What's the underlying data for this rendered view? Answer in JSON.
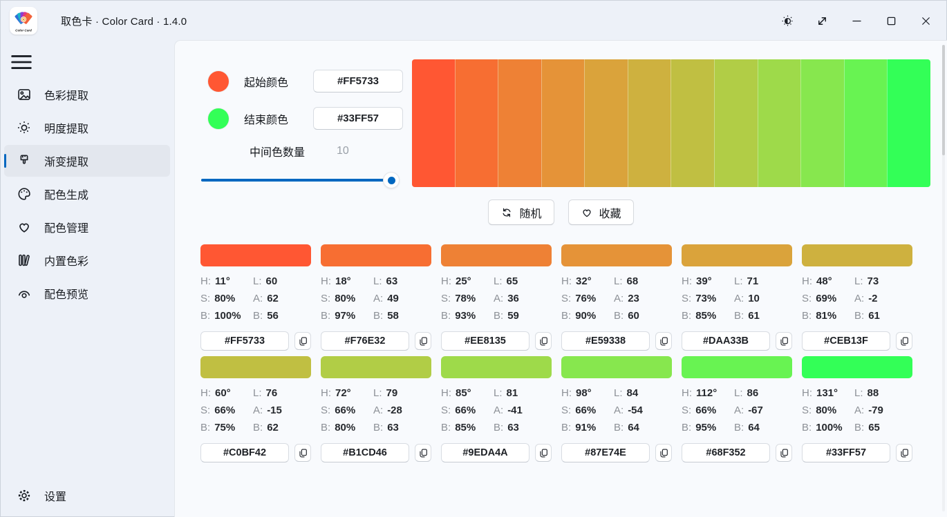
{
  "window": {
    "title": "取色卡 · Color Card · 1.4.0",
    "app_icon_label": "Color Card"
  },
  "sidebar": {
    "items": [
      {
        "name": "color-extract",
        "icon": "image-icon",
        "label": "色彩提取",
        "selected": false
      },
      {
        "name": "brightness-extract",
        "icon": "brightness-icon",
        "label": "明度提取",
        "selected": false
      },
      {
        "name": "gradient-extract",
        "icon": "brush-icon",
        "label": "渐变提取",
        "selected": true
      },
      {
        "name": "scheme-generate",
        "icon": "palette-icon",
        "label": "配色生成",
        "selected": false
      },
      {
        "name": "scheme-manage",
        "icon": "heart-icon",
        "label": "配色管理",
        "selected": false
      },
      {
        "name": "builtin-colors",
        "icon": "library-icon",
        "label": "内置色彩",
        "selected": false
      },
      {
        "name": "scheme-preview",
        "icon": "preview-icon",
        "label": "配色预览",
        "selected": false
      }
    ],
    "settings_label": "设置"
  },
  "panel": {
    "start_label": "起始颜色",
    "start_value": "#FF5733",
    "start_color": "#FF5733",
    "end_label": "结束颜色",
    "end_value": "#33FF57",
    "end_color": "#33FF57",
    "count_label": "中间色数量",
    "count_value": "10",
    "slider_percent": 100
  },
  "actions": {
    "random_label": "随机",
    "favorite_label": "收藏"
  },
  "gradient": {
    "colors": [
      "#FF5733",
      "#F76E32",
      "#EE8135",
      "#E59338",
      "#DAA33B",
      "#CEB13F",
      "#C0BF42",
      "#B1CD46",
      "#9EDA4A",
      "#87E74E",
      "#68F352",
      "#33FF57"
    ]
  },
  "value_labels": {
    "h": "H:",
    "s": "S:",
    "b": "B:",
    "l": "L:",
    "a": "A:",
    "b2": "B:"
  },
  "swatches": [
    {
      "hex": "#FF5733",
      "h": "11°",
      "s": "80%",
      "b": "100%",
      "l": "60",
      "a": "62",
      "b2": "56"
    },
    {
      "hex": "#F76E32",
      "h": "18°",
      "s": "80%",
      "b": "97%",
      "l": "63",
      "a": "49",
      "b2": "58"
    },
    {
      "hex": "#EE8135",
      "h": "25°",
      "s": "78%",
      "b": "93%",
      "l": "65",
      "a": "36",
      "b2": "59"
    },
    {
      "hex": "#E59338",
      "h": "32°",
      "s": "76%",
      "b": "90%",
      "l": "68",
      "a": "23",
      "b2": "60"
    },
    {
      "hex": "#DAA33B",
      "h": "39°",
      "s": "73%",
      "b": "85%",
      "l": "71",
      "a": "10",
      "b2": "61"
    },
    {
      "hex": "#CEB13F",
      "h": "48°",
      "s": "69%",
      "b": "81%",
      "l": "73",
      "a": "-2",
      "b2": "61"
    },
    {
      "hex": "#C0BF42",
      "h": "60°",
      "s": "66%",
      "b": "75%",
      "l": "76",
      "a": "-15",
      "b2": "62"
    },
    {
      "hex": "#B1CD46",
      "h": "72°",
      "s": "66%",
      "b": "80%",
      "l": "79",
      "a": "-28",
      "b2": "63"
    },
    {
      "hex": "#9EDA4A",
      "h": "85°",
      "s": "66%",
      "b": "85%",
      "l": "81",
      "a": "-41",
      "b2": "63"
    },
    {
      "hex": "#87E74E",
      "h": "98°",
      "s": "66%",
      "b": "91%",
      "l": "84",
      "a": "-54",
      "b2": "64"
    },
    {
      "hex": "#68F352",
      "h": "112°",
      "s": "66%",
      "b": "95%",
      "l": "86",
      "a": "-67",
      "b2": "64"
    },
    {
      "hex": "#33FF57",
      "h": "131°",
      "s": "80%",
      "b": "100%",
      "l": "88",
      "a": "-79",
      "b2": "65"
    }
  ],
  "colors": {
    "accent": "#0067C0"
  }
}
